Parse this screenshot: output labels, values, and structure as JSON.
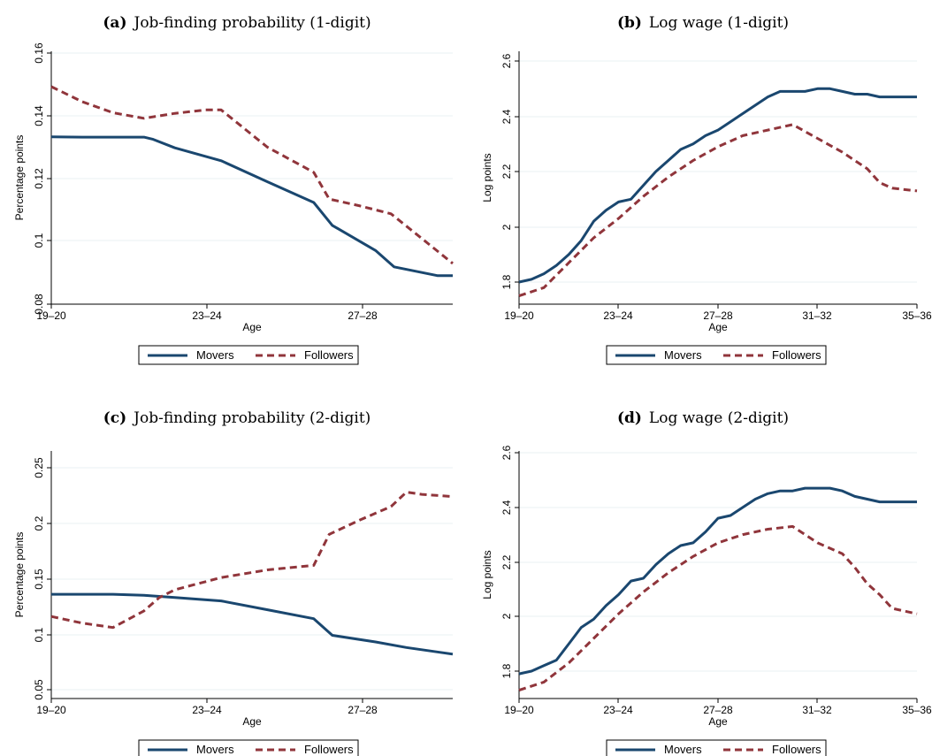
{
  "colors": {
    "movers": "#1a476f",
    "followers": "#90353b",
    "grid": "#eaf2f3",
    "axis": "#000000"
  },
  "chart_data": [
    {
      "type": "line",
      "panel_letter": "(a)",
      "title": "Job-finding probability (1-digit)",
      "xlabel": "Age",
      "ylabel": "Percentage points",
      "xticks": [
        "19–20",
        "23–24",
        "27–28"
      ],
      "yticks": [
        "0.08",
        "0.1",
        "0.12",
        "0.14",
        "0.16"
      ],
      "ytick_values": [
        0.08,
        0.1,
        0.12,
        0.14,
        0.16
      ],
      "ylim": [
        0.08,
        0.16
      ],
      "xlim": [
        0,
        13
      ],
      "legend_position": "bottom",
      "series": [
        {
          "name": "Movers",
          "style": "solid",
          "x": [
            0,
            1,
            2,
            3,
            3.3,
            4,
            5.5,
            7,
            8.5,
            9.1,
            10.5,
            11.1,
            12.5,
            13
          ],
          "values": [
            0.1333,
            0.1332,
            0.1332,
            0.1332,
            0.1325,
            0.1298,
            0.1257,
            0.119,
            0.1124,
            0.1051,
            0.0971,
            0.0919,
            0.0891,
            0.0891
          ]
        },
        {
          "name": "Followers",
          "style": "dashed",
          "x": [
            0,
            1,
            2,
            3,
            4,
            5,
            5.5,
            7,
            8.5,
            9,
            10,
            11,
            12,
            13
          ],
          "values": [
            0.1493,
            0.1445,
            0.141,
            0.1392,
            0.1408,
            0.1419,
            0.1419,
            0.13,
            0.122,
            0.1135,
            0.1113,
            0.1088,
            0.1009,
            0.093
          ]
        }
      ]
    },
    {
      "type": "line",
      "panel_letter": "(b)",
      "title": "Log wage (1-digit)",
      "xlabel": "Age",
      "ylabel": "Log points",
      "xticks": [
        "19–20",
        "23–24",
        "27–28",
        "31–32",
        "35–36"
      ],
      "yticks": [
        "1.8",
        "2",
        "2.2",
        "2.4",
        "2.6"
      ],
      "ytick_values": [
        1.8,
        2.0,
        2.2,
        2.4,
        2.6
      ],
      "ylim": [
        1.73,
        2.6
      ],
      "xlim": [
        0,
        16
      ],
      "legend_position": "bottom",
      "series": [
        {
          "name": "Movers",
          "style": "solid",
          "x": [
            0,
            0.5,
            1,
            1.5,
            2,
            2.5,
            3,
            3.5,
            4,
            4.5,
            5,
            5.5,
            6,
            6.5,
            7,
            7.5,
            8,
            8.5,
            9,
            9.5,
            10,
            10.5,
            11,
            11.5,
            12,
            12.5,
            13,
            13.5,
            14,
            14.5,
            15,
            15.5,
            16
          ],
          "values": [
            1.8,
            1.81,
            1.83,
            1.86,
            1.9,
            1.95,
            2.02,
            2.06,
            2.09,
            2.1,
            2.15,
            2.2,
            2.24,
            2.28,
            2.3,
            2.33,
            2.35,
            2.38,
            2.41,
            2.44,
            2.47,
            2.49,
            2.49,
            2.49,
            2.5,
            2.5,
            2.49,
            2.48,
            2.48,
            2.47,
            2.47,
            2.47,
            2.47
          ]
        },
        {
          "name": "Followers",
          "style": "dashed",
          "x": [
            0,
            1,
            2,
            3,
            4,
            5,
            6,
            7,
            8,
            9,
            10,
            11,
            12,
            13,
            14,
            14.5,
            15,
            16
          ],
          "values": [
            1.75,
            1.78,
            1.87,
            1.96,
            2.03,
            2.11,
            2.18,
            2.24,
            2.29,
            2.33,
            2.35,
            2.37,
            2.32,
            2.27,
            2.21,
            2.16,
            2.14,
            2.13
          ]
        }
      ]
    },
    {
      "type": "line",
      "panel_letter": "(c)",
      "title": "Job-finding probability (2-digit)",
      "xlabel": "Age",
      "ylabel": "Percentage points",
      "xticks": [
        "19–20",
        "23–24",
        "27–28"
      ],
      "yticks": [
        "0.05",
        "0.1",
        "0.15",
        "0.2",
        "0.25"
      ],
      "ytick_values": [
        0.05,
        0.1,
        0.15,
        0.2,
        0.25
      ],
      "ylim": [
        0.05,
        0.25
      ],
      "xlim": [
        0,
        13
      ],
      "legend_position": "bottom",
      "series": [
        {
          "name": "Movers",
          "style": "solid",
          "x": [
            0,
            1,
            2,
            3,
            4,
            5.5,
            7,
            8.5,
            9.1,
            10.5,
            11.5,
            12.5,
            13
          ],
          "values": [
            0.136,
            0.136,
            0.136,
            0.135,
            0.133,
            0.13,
            0.122,
            0.114,
            0.099,
            0.093,
            0.088,
            0.084,
            0.082
          ]
        },
        {
          "name": "Followers",
          "style": "dashed",
          "x": [
            0,
            1,
            2,
            3,
            3.5,
            4,
            5.5,
            7,
            8.5,
            9,
            10,
            11,
            11.5,
            12,
            13
          ],
          "values": [
            0.116,
            0.11,
            0.106,
            0.121,
            0.133,
            0.14,
            0.151,
            0.158,
            0.162,
            0.19,
            0.203,
            0.215,
            0.228,
            0.226,
            0.224
          ]
        }
      ]
    },
    {
      "type": "line",
      "panel_letter": "(d)",
      "title": "Log wage (2-digit)",
      "xlabel": "Age",
      "ylabel": "Log points",
      "xticks": [
        "19–20",
        "23–24",
        "27–28",
        "31–32",
        "35–36"
      ],
      "yticks": [
        "1.8",
        "2",
        "2.2",
        "2.4",
        "2.6"
      ],
      "ytick_values": [
        1.8,
        2.0,
        2.2,
        2.4,
        2.6
      ],
      "ylim": [
        1.72,
        2.6
      ],
      "xlim": [
        0,
        16
      ],
      "legend_position": "bottom",
      "series": [
        {
          "name": "Movers",
          "style": "solid",
          "x": [
            0,
            0.5,
            1,
            1.5,
            2,
            2.5,
            3,
            3.5,
            4,
            4.5,
            5,
            5.5,
            6,
            6.5,
            7,
            7.5,
            8,
            8.5,
            9,
            9.5,
            10,
            10.5,
            11,
            11.5,
            12,
            12.5,
            13,
            13.5,
            14,
            14.5,
            15,
            15.5,
            16
          ],
          "values": [
            1.79,
            1.8,
            1.82,
            1.84,
            1.9,
            1.96,
            1.99,
            2.04,
            2.08,
            2.13,
            2.14,
            2.19,
            2.23,
            2.26,
            2.27,
            2.31,
            2.36,
            2.37,
            2.4,
            2.43,
            2.45,
            2.46,
            2.46,
            2.47,
            2.47,
            2.47,
            2.46,
            2.44,
            2.43,
            2.42,
            2.42,
            2.42,
            2.42
          ]
        },
        {
          "name": "Followers",
          "style": "dashed",
          "x": [
            0,
            1,
            2,
            3,
            4,
            5,
            6,
            7,
            8,
            9,
            10,
            11,
            12,
            13,
            13.5,
            14,
            14.5,
            15,
            16
          ],
          "values": [
            1.73,
            1.76,
            1.83,
            1.92,
            2.01,
            2.09,
            2.16,
            2.22,
            2.27,
            2.3,
            2.32,
            2.33,
            2.27,
            2.23,
            2.18,
            2.12,
            2.08,
            2.03,
            2.01
          ]
        }
      ]
    }
  ]
}
